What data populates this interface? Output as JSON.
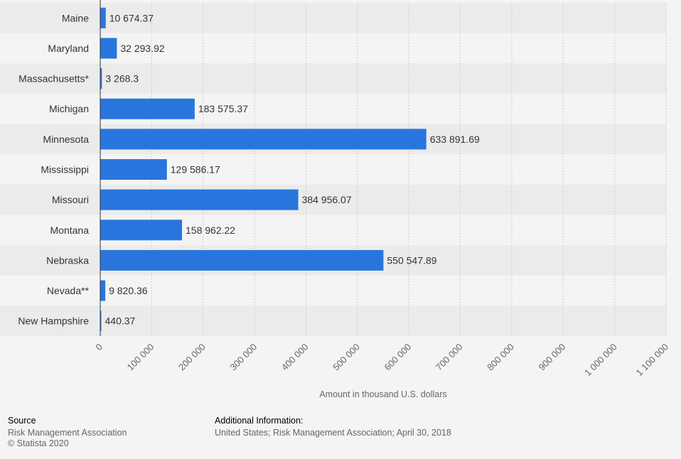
{
  "chart_data": {
    "type": "bar",
    "orientation": "horizontal",
    "categories": [
      "Maine",
      "Maryland",
      "Massachusetts*",
      "Michigan",
      "Minnesota",
      "Mississippi",
      "Missouri",
      "Montana",
      "Nebraska",
      "Nevada**",
      "New Hampshire"
    ],
    "values": [
      10674.37,
      32293.92,
      3268.3,
      183575.37,
      633891.69,
      129586.17,
      384956.07,
      158962.22,
      550547.89,
      9820.36,
      440.37
    ],
    "value_labels": [
      "10 674.37",
      "32 293.92",
      "3 268.3",
      "183 575.37",
      "633 891.69",
      "129 586.17",
      "384 956.07",
      "158 962.22",
      "550 547.89",
      "9 820.36",
      "440.37"
    ],
    "xlim": [
      0,
      1100000
    ],
    "ticks": [
      0,
      100000,
      200000,
      300000,
      400000,
      500000,
      600000,
      700000,
      800000,
      900000,
      1000000,
      1100000
    ],
    "tick_labels": [
      "0",
      "100 000",
      "200 000",
      "300 000",
      "400 000",
      "500 000",
      "600 000",
      "700 000",
      "800 000",
      "900 000",
      "1 000 000",
      "1 100 000"
    ],
    "xlabel": "Amount in thousand U.S. dollars",
    "ylabel": "",
    "grid": true,
    "colors": {
      "bar": "#2876dd",
      "band": "#ebebeb",
      "grid": "#cccccc",
      "axis": "#333333"
    }
  },
  "footer": {
    "source_heading": "Source",
    "source_name": "Risk Management Association",
    "copyright": "© Statista 2020",
    "info_heading": "Additional Information:",
    "info_text": "United States; Risk Management Association; April 30, 2018"
  }
}
